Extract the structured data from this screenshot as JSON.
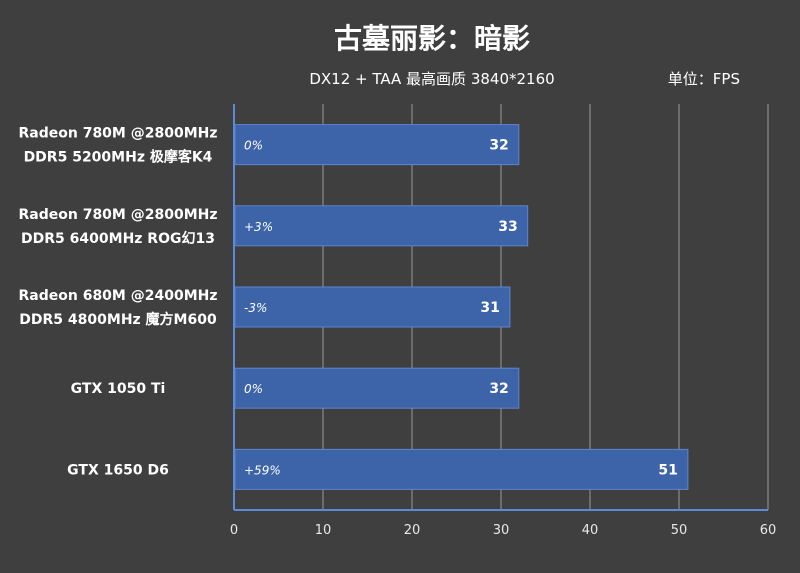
{
  "chart_data": {
    "type": "bar",
    "orientation": "horizontal",
    "title": "古墓丽影：暗影",
    "subtitle": "DX12 + TAA 最高画质 3840*2160",
    "unit": "单位：FPS",
    "categories": [
      [
        "Radeon 780M @2800MHz",
        "DDR5 5200MHz 极摩客K4"
      ],
      [
        "Radeon 780M @2800MHz",
        "DDR5 6400MHz ROG幻13"
      ],
      [
        "Radeon 680M @2400MHz",
        "DDR5 4800MHz 魔方M600"
      ],
      [
        "GTX 1050 Ti"
      ],
      [
        "GTX 1650 D6"
      ]
    ],
    "values": [
      32,
      33,
      31,
      32,
      51
    ],
    "percent_labels": [
      "0%",
      "+3%",
      "-3%",
      "0%",
      "+59%"
    ],
    "xlim": [
      0,
      60
    ],
    "xticks": [
      0,
      10,
      20,
      30,
      40,
      50,
      60
    ],
    "grid": true,
    "colors": {
      "background": "#3f3f3f",
      "bar": "#3d63a8",
      "bar_edge": "#5d86cf",
      "axis": "#5b8bd6",
      "grid": "#9a9a9a",
      "text": "#ffffff"
    }
  }
}
